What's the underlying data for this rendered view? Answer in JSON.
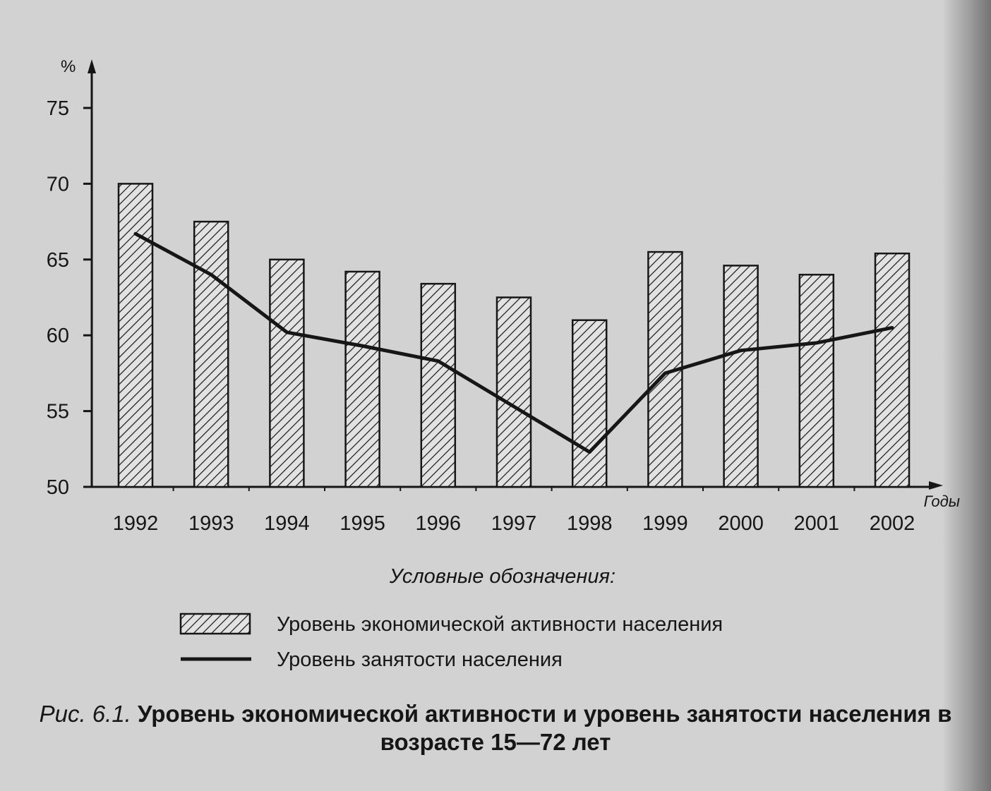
{
  "chart_data": {
    "type": "bar",
    "y_unit": "%",
    "x_axis_label": "Годы",
    "categories": [
      "1992",
      "1993",
      "1994",
      "1995",
      "1996",
      "1997",
      "1998",
      "1999",
      "2000",
      "2001",
      "2002"
    ],
    "ylim": [
      50,
      77
    ],
    "y_ticks": [
      50,
      55,
      60,
      65,
      70,
      75
    ],
    "grid": false,
    "legend_position": "bottom",
    "series": [
      {
        "name": "Уровень экономической активности населения",
        "kind": "bar",
        "fill": "hatched",
        "values": [
          70.0,
          67.5,
          65.0,
          64.2,
          63.4,
          62.5,
          61.0,
          65.5,
          64.6,
          64.0,
          65.4
        ]
      },
      {
        "name": "Уровень занятости населения",
        "kind": "line",
        "values": [
          66.7,
          64.0,
          60.2,
          59.3,
          58.3,
          55.3,
          52.3,
          57.5,
          59.0,
          59.5,
          60.5
        ]
      }
    ]
  },
  "legend": {
    "heading": "Условные обозначения:"
  },
  "caption": {
    "number": "Рис. 6.1.",
    "text": "Уровень экономической активности и уровень занятости населения в возрасте 15—72 лет"
  },
  "colors": {
    "ink": "#161616",
    "paper": "#d2d2d2"
  }
}
